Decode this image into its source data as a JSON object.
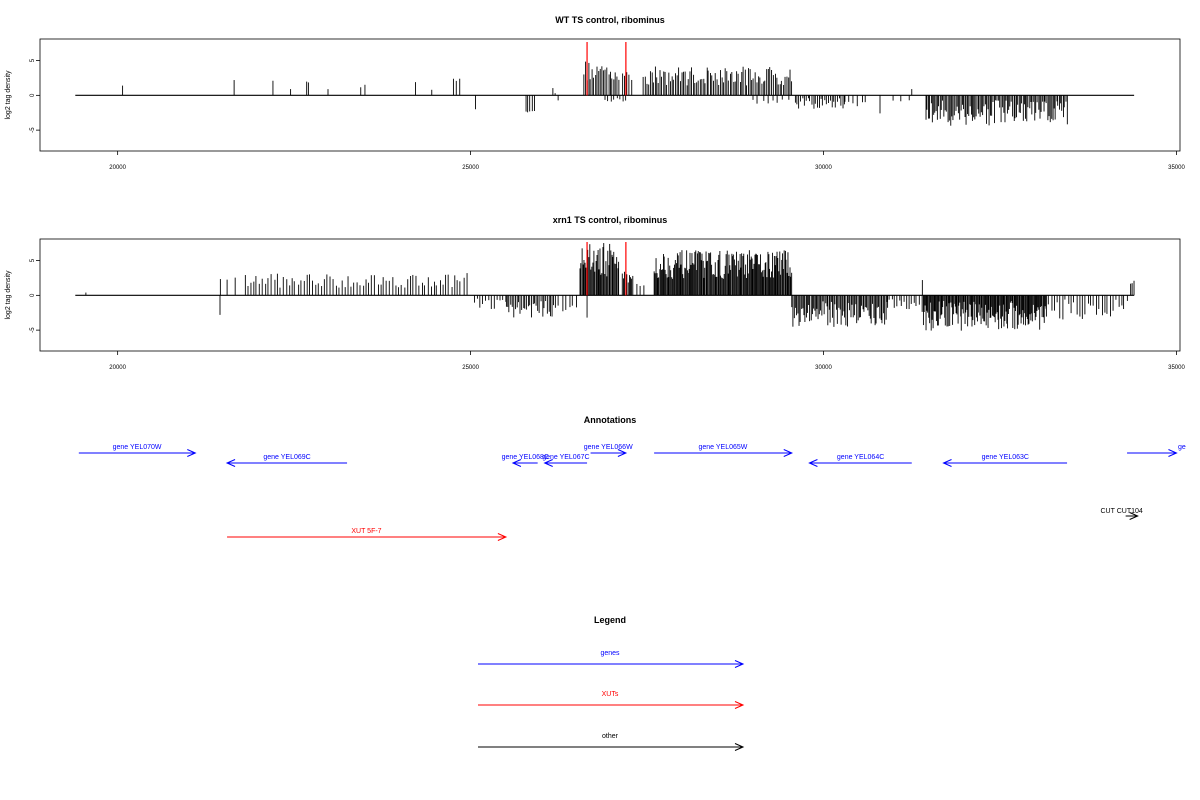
{
  "colors": {
    "genes": "#0000ff",
    "xuts": "#ff0000",
    "other": "#000000",
    "signal": "#000000",
    "marker": "#ff0000"
  },
  "chart_data": [
    {
      "type": "bar",
      "title": "WT TS control, ribominus",
      "ylabel": "log2 tag density",
      "xlim": [
        18900,
        35050
      ],
      "ylim": [
        -8,
        8.1
      ],
      "xticks": [
        "20000",
        "25000",
        "30000",
        "35000"
      ],
      "yticks": [
        "5",
        "0",
        "-5"
      ],
      "baseline_range": [
        19400,
        34400
      ],
      "markers_x": [
        26650,
        27200
      ],
      "segments": [
        {
          "x0": 20070,
          "x1": 20070,
          "n": 1,
          "lo": 1.4,
          "hi": 1.4
        },
        {
          "x0": 21650,
          "x1": 21650,
          "n": 1,
          "lo": 2.2,
          "hi": 2.2
        },
        {
          "x0": 22200,
          "x1": 22200,
          "n": 1,
          "lo": 2.1,
          "hi": 2.1
        },
        {
          "x0": 22450,
          "x1": 22450,
          "n": 1,
          "lo": 0.9,
          "hi": 0.9
        },
        {
          "x0": 22680,
          "x1": 22700,
          "n": 2,
          "lo": 1.8,
          "hi": 2.0
        },
        {
          "x0": 22980,
          "x1": 22980,
          "n": 1,
          "lo": 0.9,
          "hi": 0.9
        },
        {
          "x0": 23450,
          "x1": 23500,
          "n": 2,
          "lo": 0.9,
          "hi": 1.8
        },
        {
          "x0": 24220,
          "x1": 24220,
          "n": 1,
          "lo": 1.9,
          "hi": 1.9
        },
        {
          "x0": 24450,
          "x1": 24450,
          "n": 1,
          "lo": 0.8,
          "hi": 0.8
        },
        {
          "x0": 24750,
          "x1": 24850,
          "n": 3,
          "lo": 1.8,
          "hi": 2.5
        },
        {
          "x0": 25070,
          "x1": 25070,
          "n": 1,
          "lo": -2.0,
          "hi": -2.0
        },
        {
          "x0": 25780,
          "x1": 25900,
          "n": 5,
          "lo": -2.8,
          "hi": -1.5
        },
        {
          "x0": 26160,
          "x1": 26240,
          "n": 3,
          "lo": -2.0,
          "hi": 1.2
        },
        {
          "x0": 26600,
          "x1": 27100,
          "n": 22,
          "lo": 1.0,
          "hi": 5.0
        },
        {
          "x0": 26900,
          "x1": 27200,
          "n": 8,
          "lo": -1.2,
          "hi": -0.4
        },
        {
          "x0": 27150,
          "x1": 27280,
          "n": 5,
          "lo": 1.5,
          "hi": 4.0
        },
        {
          "x0": 27450,
          "x1": 29550,
          "n": 90,
          "lo": 0.5,
          "hi": 4.2
        },
        {
          "x0": 29000,
          "x1": 29500,
          "n": 8,
          "lo": -1.5,
          "hi": -0.4
        },
        {
          "x0": 29600,
          "x1": 30300,
          "n": 28,
          "lo": -2.5,
          "hi": -0.4
        },
        {
          "x0": 30300,
          "x1": 30600,
          "n": 6,
          "lo": -2.0,
          "hi": -0.5
        },
        {
          "x0": 30800,
          "x1": 30850,
          "n": 1,
          "lo": -2.6,
          "hi": -2.6
        },
        {
          "x0": 31000,
          "x1": 31200,
          "n": 3,
          "lo": -1.8,
          "hi": -0.6
        },
        {
          "x0": 31250,
          "x1": 31250,
          "n": 1,
          "lo": 0.9,
          "hi": 0.9
        },
        {
          "x0": 31450,
          "x1": 33450,
          "n": 110,
          "lo": -5.8,
          "hi": -0.6
        }
      ]
    },
    {
      "type": "bar",
      "title": "xrn1 TS control, ribominus",
      "ylabel": "log2 tag density",
      "xlim": [
        18900,
        35050
      ],
      "ylim": [
        -8,
        8.1
      ],
      "xticks": [
        "20000",
        "25000",
        "30000",
        "35000"
      ],
      "yticks": [
        "5",
        "0",
        "-5"
      ],
      "baseline_range": [
        19400,
        34400
      ],
      "markers_x": [
        26650,
        27200
      ],
      "segments": [
        {
          "x0": 19550,
          "x1": 19550,
          "n": 1,
          "lo": 0.4,
          "hi": 0.4
        },
        {
          "x0": 21450,
          "x1": 21450,
          "n": 1,
          "lo": -2.8,
          "hi": -2.8
        },
        {
          "x0": 21450,
          "x1": 21650,
          "n": 3,
          "lo": 0.5,
          "hi": 2.7
        },
        {
          "x0": 21800,
          "x1": 24900,
          "n": 75,
          "lo": 0.4,
          "hi": 3.2
        },
        {
          "x0": 24950,
          "x1": 25000,
          "n": 1,
          "lo": 3.2,
          "hi": 3.2
        },
        {
          "x0": 25050,
          "x1": 25500,
          "n": 12,
          "lo": -2.5,
          "hi": -0.4
        },
        {
          "x0": 25500,
          "x1": 26200,
          "n": 32,
          "lo": -4.0,
          "hi": -0.8
        },
        {
          "x0": 26250,
          "x1": 26500,
          "n": 6,
          "lo": -3.0,
          "hi": -0.5
        },
        {
          "x0": 26550,
          "x1": 27100,
          "n": 40,
          "lo": 1.0,
          "hi": 7.6
        },
        {
          "x0": 26650,
          "x1": 26650,
          "n": 1,
          "lo": -3.2,
          "hi": -3.2
        },
        {
          "x0": 27150,
          "x1": 27300,
          "n": 10,
          "lo": 1.0,
          "hi": 3.5
        },
        {
          "x0": 27350,
          "x1": 27450,
          "n": 3,
          "lo": 0.6,
          "hi": 2.0
        },
        {
          "x0": 27600,
          "x1": 29550,
          "n": 150,
          "lo": 1.0,
          "hi": 6.5
        },
        {
          "x0": 29550,
          "x1": 30900,
          "n": 80,
          "lo": -5.8,
          "hi": -0.8
        },
        {
          "x0": 30900,
          "x1": 31350,
          "n": 14,
          "lo": -2.5,
          "hi": -0.5
        },
        {
          "x0": 31400,
          "x1": 31400,
          "n": 1,
          "lo": 2.2,
          "hi": 2.2
        },
        {
          "x0": 31400,
          "x1": 33150,
          "n": 140,
          "lo": -6.5,
          "hi": -0.8
        },
        {
          "x0": 33150,
          "x1": 34300,
          "n": 30,
          "lo": -4.5,
          "hi": -0.6
        },
        {
          "x0": 34350,
          "x1": 34400,
          "n": 3,
          "lo": 1.0,
          "hi": 2.8
        }
      ]
    }
  ],
  "annotations": {
    "title": "Annotations",
    "items": [
      {
        "label": "gene YEL070W",
        "start": 19450,
        "end": 21100,
        "row": 0,
        "dir": "right",
        "kind": "genes"
      },
      {
        "label": "gene YEL069C",
        "start": 21550,
        "end": 23250,
        "row": 1,
        "dir": "left",
        "kind": "genes"
      },
      {
        "label": "gene YEL068C",
        "start": 25600,
        "end": 25950,
        "row": 1,
        "dir": "left",
        "kind": "genes"
      },
      {
        "label": "gene YEL067C",
        "start": 26050,
        "end": 26650,
        "row": 1,
        "dir": "left",
        "kind": "genes"
      },
      {
        "label": "gene YEL066W",
        "start": 26700,
        "end": 27200,
        "row": 0,
        "dir": "right",
        "kind": "genes"
      },
      {
        "label": "gene YEL065W",
        "start": 27600,
        "end": 29550,
        "row": 0,
        "dir": "right",
        "kind": "genes"
      },
      {
        "label": "gene YEL064C",
        "start": 29800,
        "end": 31250,
        "row": 1,
        "dir": "left",
        "kind": "genes"
      },
      {
        "label": "gene YEL063C",
        "start": 31700,
        "end": 33450,
        "row": 1,
        "dir": "left",
        "kind": "genes"
      },
      {
        "label": "ge",
        "start": 34300,
        "end": 35000,
        "row": 0,
        "dir": "right",
        "kind": "genes"
      },
      {
        "label": "CUT CUT104",
        "start": 34280,
        "end": 34450,
        "row": 2,
        "dir": "right",
        "kind": "other"
      },
      {
        "label": "XUT 5F-7",
        "start": 21550,
        "end": 25500,
        "row": 3,
        "dir": "right",
        "kind": "xuts"
      }
    ]
  },
  "legend": {
    "title": "Legend",
    "items": [
      {
        "label": "genes",
        "kind": "genes"
      },
      {
        "label": "XUTs",
        "kind": "xuts"
      },
      {
        "label": "other",
        "kind": "other"
      }
    ]
  }
}
